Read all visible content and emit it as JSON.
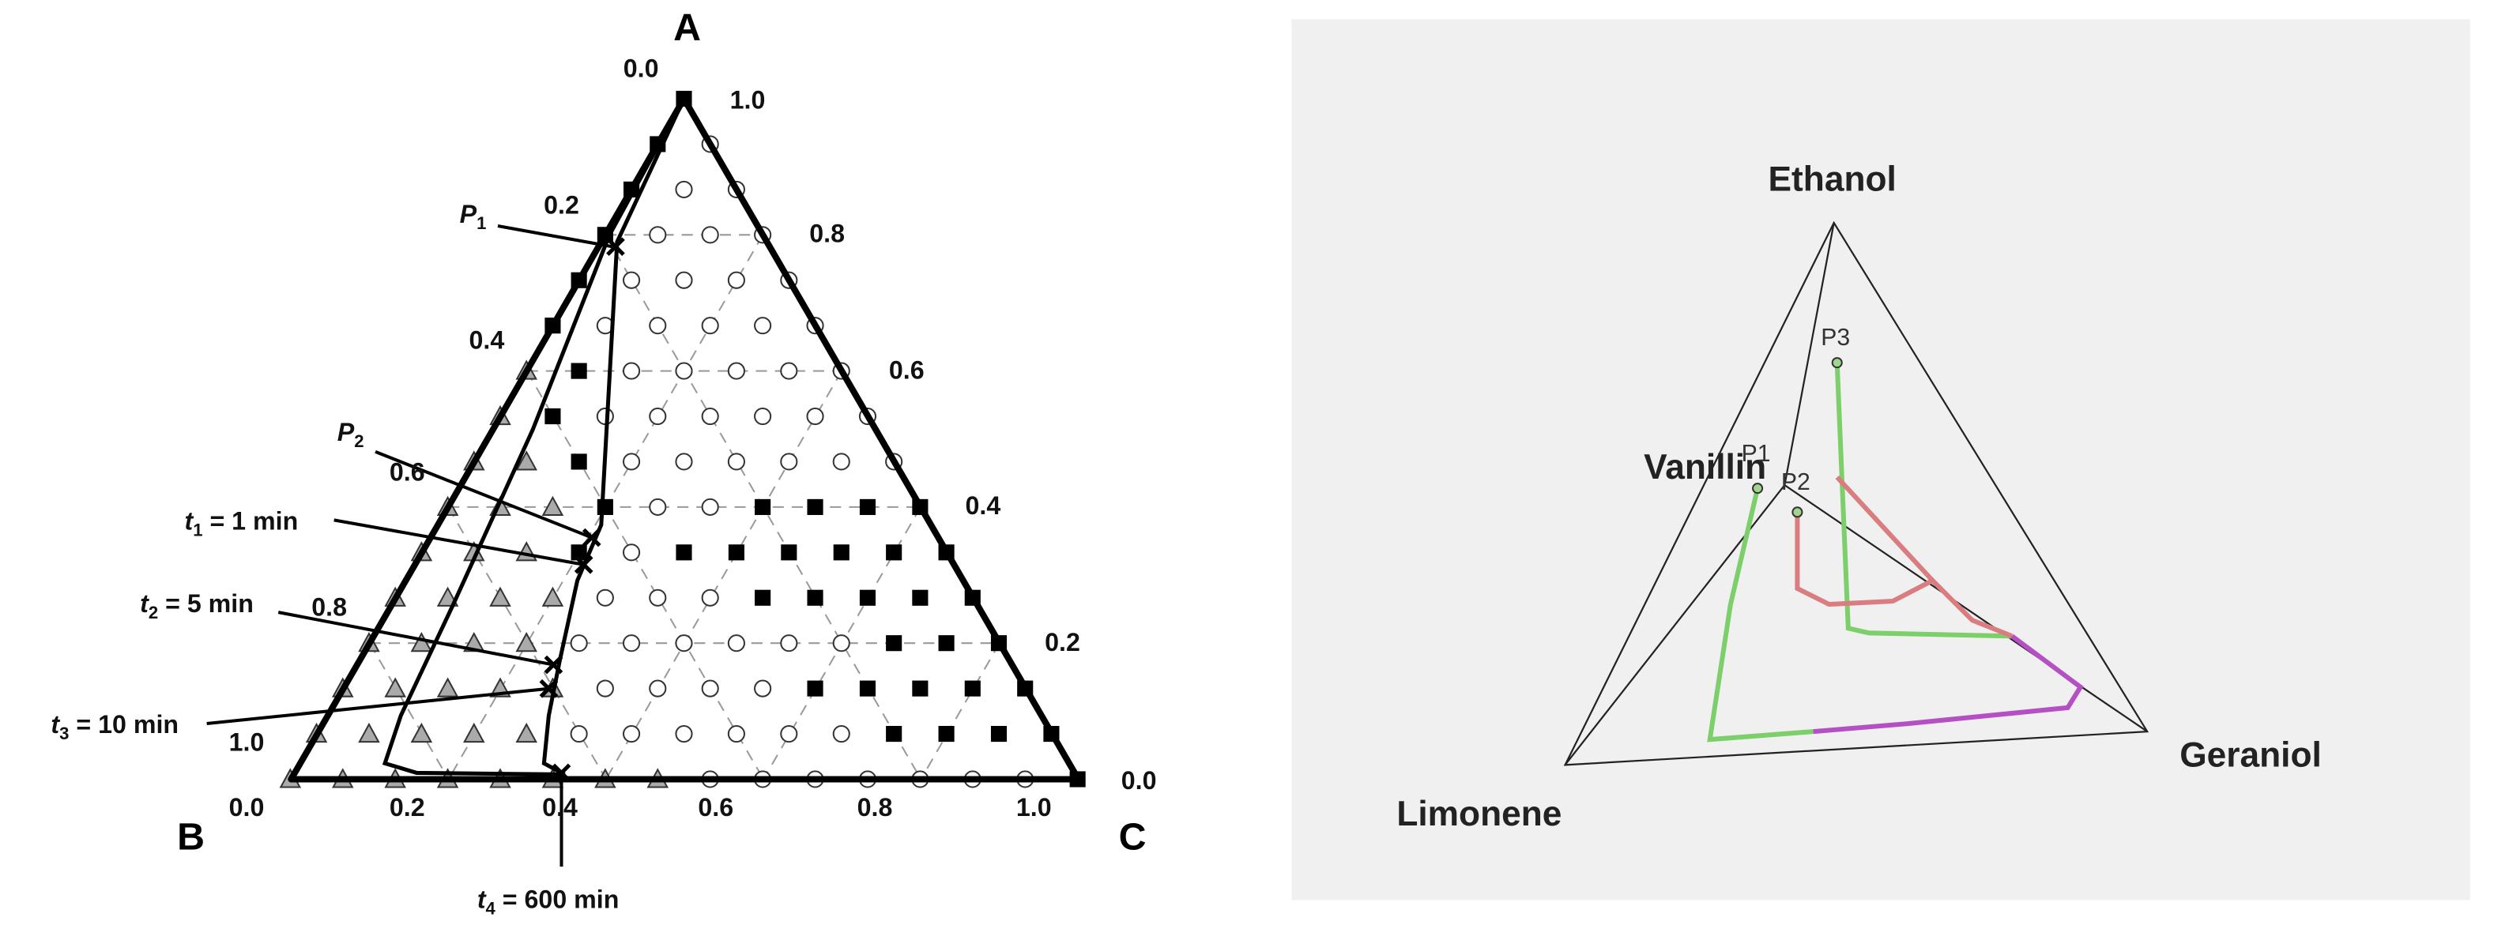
{
  "left_diagram": {
    "vertices": {
      "top": "A",
      "left": "B",
      "right": "C"
    },
    "left_axis_labels": [
      "0.0",
      "0.2",
      "0.4",
      "0.6",
      "0.8",
      "1.0"
    ],
    "right_axis_labels": [
      "1.0",
      "0.8",
      "0.6",
      "0.4",
      "0.2",
      "0.0"
    ],
    "bottom_axis_labels": [
      "0.0",
      "0.2",
      "0.4",
      "0.6",
      "0.8",
      "1.0"
    ],
    "points": [
      {
        "symbol": "P",
        "index": "1"
      },
      {
        "symbol": "P",
        "index": "2"
      }
    ],
    "times": [
      {
        "symbol": "t",
        "index": "1",
        "text": " = 1 min"
      },
      {
        "symbol": "t",
        "index": "2",
        "text": " = 5 min"
      },
      {
        "symbol": "t",
        "index": "3",
        "text": " = 10 min"
      },
      {
        "symbol": "t",
        "index": "4",
        "text": " = 600 min"
      }
    ]
  },
  "right_diagram": {
    "vertices": {
      "top": "Ethanol",
      "left": "Limonene",
      "right": "Geraniol",
      "inner": "Vanillin"
    },
    "points": [
      "P1",
      "P2",
      "P3"
    ]
  }
}
